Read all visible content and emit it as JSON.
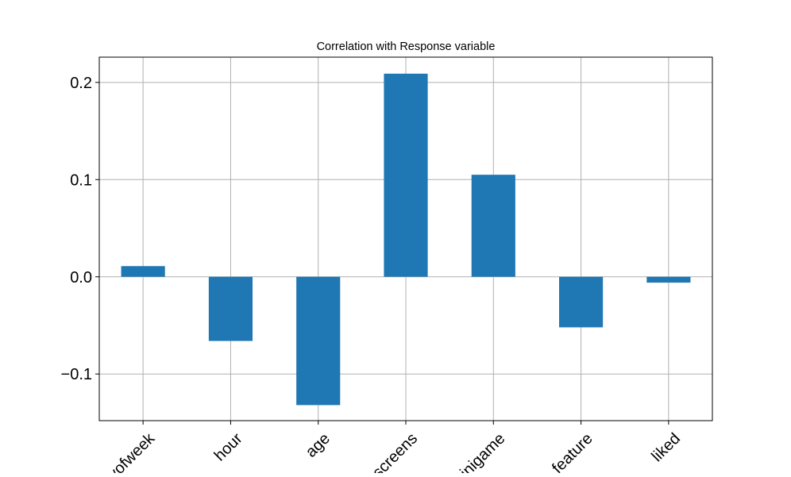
{
  "chart_data": {
    "type": "bar",
    "title": "Correlation with Response variable",
    "xlabel": "",
    "ylabel": "",
    "categories": [
      "dayofweek",
      "hour",
      "age",
      "numscreens",
      "minigame",
      "used_premium_feature",
      "liked"
    ],
    "visible_tick_labels": [
      "yofweek",
      "hour",
      "age",
      "screens",
      "inigame",
      "feature",
      "liked"
    ],
    "values": [
      0.011,
      -0.066,
      -0.132,
      0.209,
      0.105,
      -0.052,
      -0.006
    ],
    "ylim": [
      -0.148,
      0.226
    ],
    "yticks": [
      -0.1,
      0.0,
      0.1,
      0.2
    ],
    "ytick_labels": [
      "−0.1",
      "0.0",
      "0.1",
      "0.2"
    ],
    "grid": true,
    "bar_color": "#1f77b4",
    "grid_color": "#b0b0b0",
    "axis_color": "#000000"
  }
}
